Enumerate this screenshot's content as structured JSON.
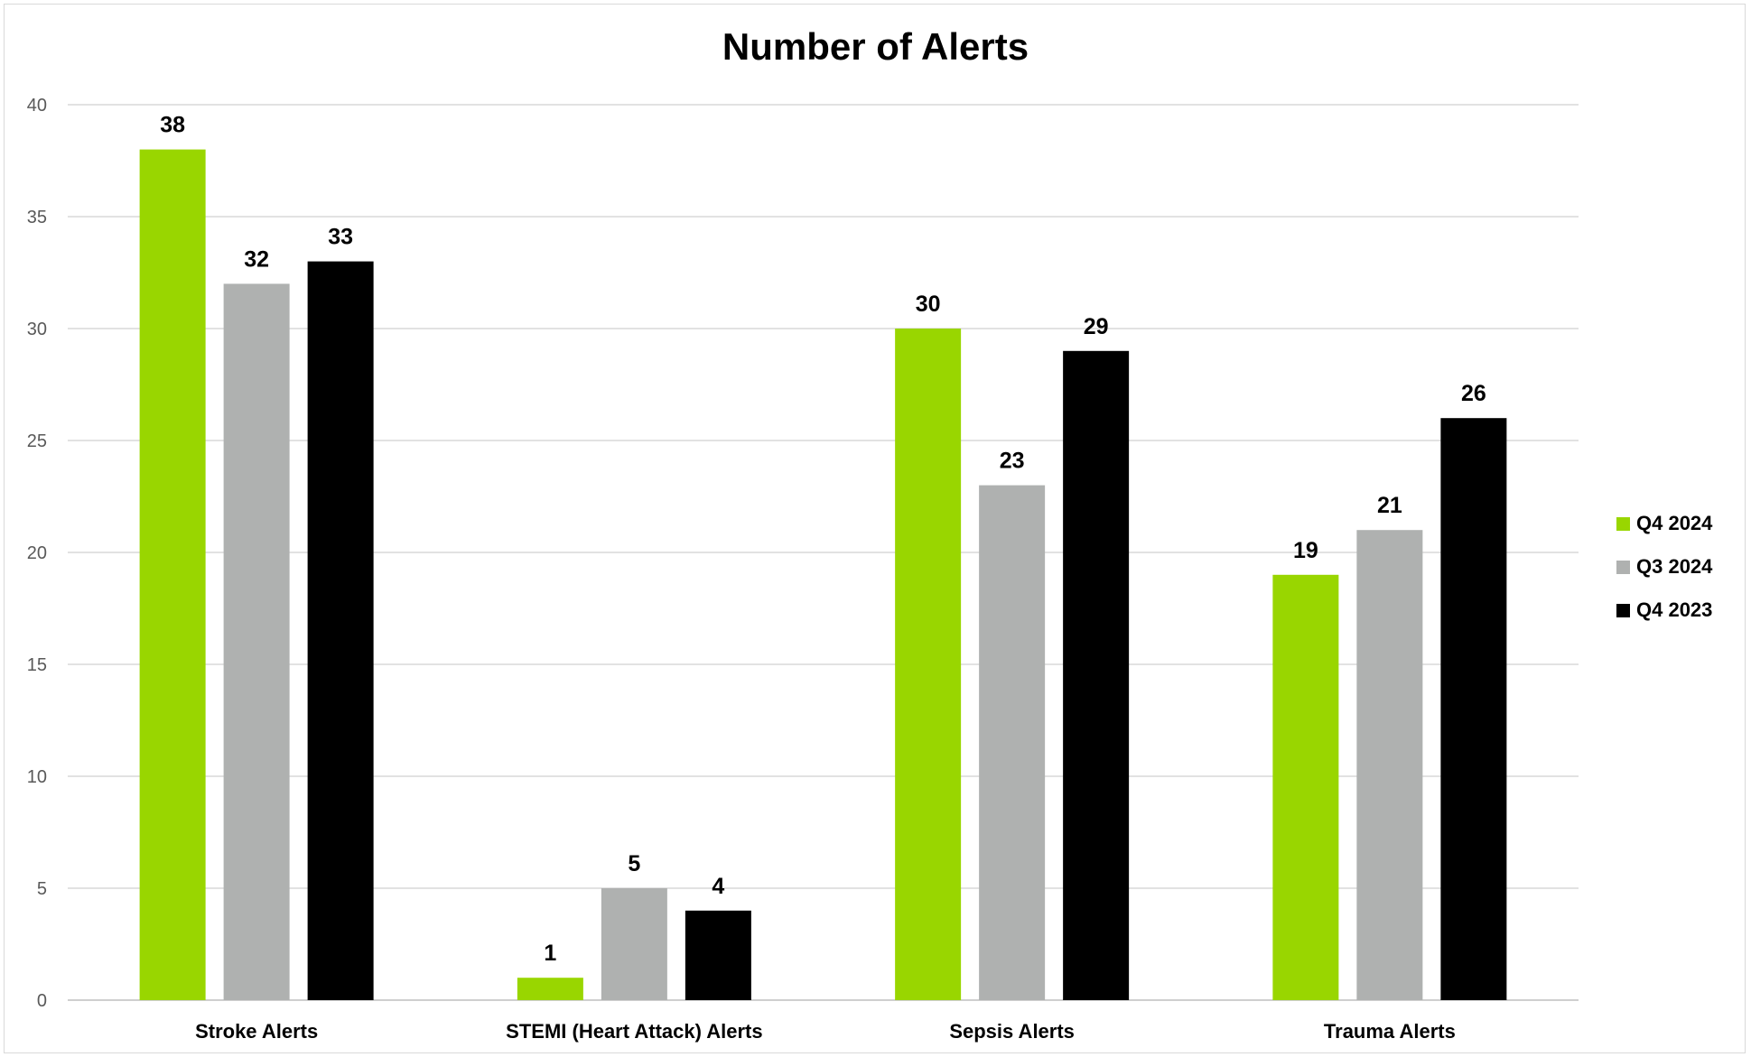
{
  "chart_data": {
    "type": "bar",
    "title": "Number of Alerts",
    "xlabel": "",
    "ylabel": "",
    "categories": [
      "Stroke Alerts",
      "STEMI (Heart Attack) Alerts",
      "Sepsis Alerts",
      "Trauma Alerts"
    ],
    "series": [
      {
        "name": "Q4 2024",
        "color": "#99d600",
        "values": [
          38,
          1,
          30,
          19
        ]
      },
      {
        "name": "Q3 2024",
        "color": "#afb1b0",
        "values": [
          32,
          5,
          23,
          21
        ]
      },
      {
        "name": "Q4 2023",
        "color": "#000000",
        "values": [
          33,
          4,
          29,
          26
        ]
      }
    ],
    "ylim": [
      0,
      40
    ],
    "yticks": [
      0,
      5,
      10,
      15,
      20,
      25,
      30,
      35,
      40
    ],
    "grid": true,
    "legend_position": "right"
  }
}
